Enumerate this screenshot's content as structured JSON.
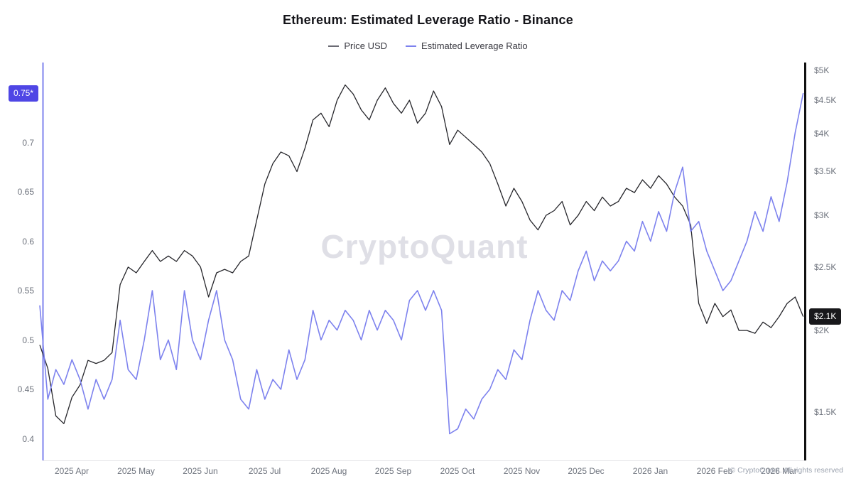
{
  "title": "Ethereum: Estimated Leverage Ratio - Binance",
  "legend": [
    {
      "label": "Price USD",
      "color": "#6b6b74"
    },
    {
      "label": "Estimated Leverage Ratio",
      "color": "#7d82ee"
    }
  ],
  "watermark": "CryptoQuant",
  "footer": "© CryptoQuant. All rights reserved",
  "chart_data": {
    "type": "line",
    "title": "Ethereum: Estimated Leverage Ratio - Binance",
    "x_tick_labels": [
      "2025 Apr",
      "2025 May",
      "2025 Jun",
      "2025 Jul",
      "2025 Aug",
      "2025 Sep",
      "2025 Oct",
      "2025 Nov",
      "2025 Dec",
      "2026 Jan",
      "2026 Feb",
      "2026 Mar"
    ],
    "points_per_month": 8,
    "left_axis": {
      "title": "Estimated Leverage Ratio",
      "scale": "linear",
      "range": [
        0.4,
        0.75
      ],
      "tick_values": [
        0.7,
        0.65,
        0.6,
        0.55,
        0.5,
        0.45,
        0.4
      ],
      "tick_labels": [
        "0.7",
        "0.65",
        "0.6",
        "0.55",
        "0.5",
        "0.45",
        "0.4"
      ],
      "badge": {
        "text": "0.75*",
        "value": 0.75,
        "bg": "#4f46e5"
      }
    },
    "right_axis": {
      "title": "Price USD",
      "scale": "log",
      "range": [
        1500,
        5000
      ],
      "tick_values": [
        5000,
        4500,
        4000,
        3500,
        3000,
        2500,
        2000,
        1500
      ],
      "tick_labels": [
        "$5K",
        "$4.5K",
        "$4K",
        "$3.5K",
        "$3K",
        "$2.5K",
        "$2K",
        "$1.5K"
      ],
      "badge": {
        "text": "$2.1K",
        "value": 2100,
        "bg": "#18181b"
      }
    },
    "series": [
      {
        "name": "Price USD",
        "axis": "right",
        "color": "#26262b",
        "values": [
          1900,
          1750,
          1480,
          1440,
          1580,
          1650,
          1800,
          1780,
          1800,
          1850,
          2350,
          2500,
          2450,
          2550,
          2650,
          2550,
          2600,
          2550,
          2650,
          2600,
          2500,
          2250,
          2450,
          2480,
          2450,
          2550,
          2600,
          2950,
          3350,
          3600,
          3750,
          3700,
          3500,
          3800,
          4200,
          4300,
          4100,
          4500,
          4750,
          4600,
          4350,
          4200,
          4500,
          4700,
          4450,
          4300,
          4500,
          4150,
          4300,
          4650,
          4400,
          3850,
          4050,
          3950,
          3850,
          3750,
          3600,
          3350,
          3100,
          3300,
          3150,
          2950,
          2850,
          3000,
          3050,
          3150,
          2900,
          3000,
          3150,
          3050,
          3200,
          3100,
          3150,
          3300,
          3250,
          3400,
          3300,
          3450,
          3350,
          3200,
          3100,
          2900,
          2200,
          2050,
          2200,
          2100,
          2150,
          2000,
          2000,
          1980,
          2060,
          2020,
          2100,
          2200,
          2250,
          2100
        ]
      },
      {
        "name": "Estimated Leverage Ratio",
        "axis": "left",
        "color": "#7d82ee",
        "values": [
          0.535,
          0.44,
          0.47,
          0.455,
          0.48,
          0.46,
          0.43,
          0.46,
          0.44,
          0.46,
          0.52,
          0.47,
          0.46,
          0.5,
          0.55,
          0.48,
          0.5,
          0.47,
          0.55,
          0.5,
          0.48,
          0.52,
          0.55,
          0.5,
          0.48,
          0.44,
          0.43,
          0.47,
          0.44,
          0.46,
          0.45,
          0.49,
          0.46,
          0.48,
          0.53,
          0.5,
          0.52,
          0.51,
          0.53,
          0.52,
          0.5,
          0.53,
          0.51,
          0.53,
          0.52,
          0.5,
          0.54,
          0.55,
          0.53,
          0.55,
          0.53,
          0.405,
          0.41,
          0.43,
          0.42,
          0.44,
          0.45,
          0.47,
          0.46,
          0.49,
          0.48,
          0.52,
          0.55,
          0.53,
          0.52,
          0.55,
          0.54,
          0.57,
          0.59,
          0.56,
          0.58,
          0.57,
          0.58,
          0.6,
          0.59,
          0.62,
          0.6,
          0.63,
          0.61,
          0.65,
          0.675,
          0.61,
          0.62,
          0.59,
          0.57,
          0.55,
          0.56,
          0.58,
          0.6,
          0.63,
          0.61,
          0.645,
          0.62,
          0.66,
          0.71,
          0.75
        ]
      }
    ]
  }
}
